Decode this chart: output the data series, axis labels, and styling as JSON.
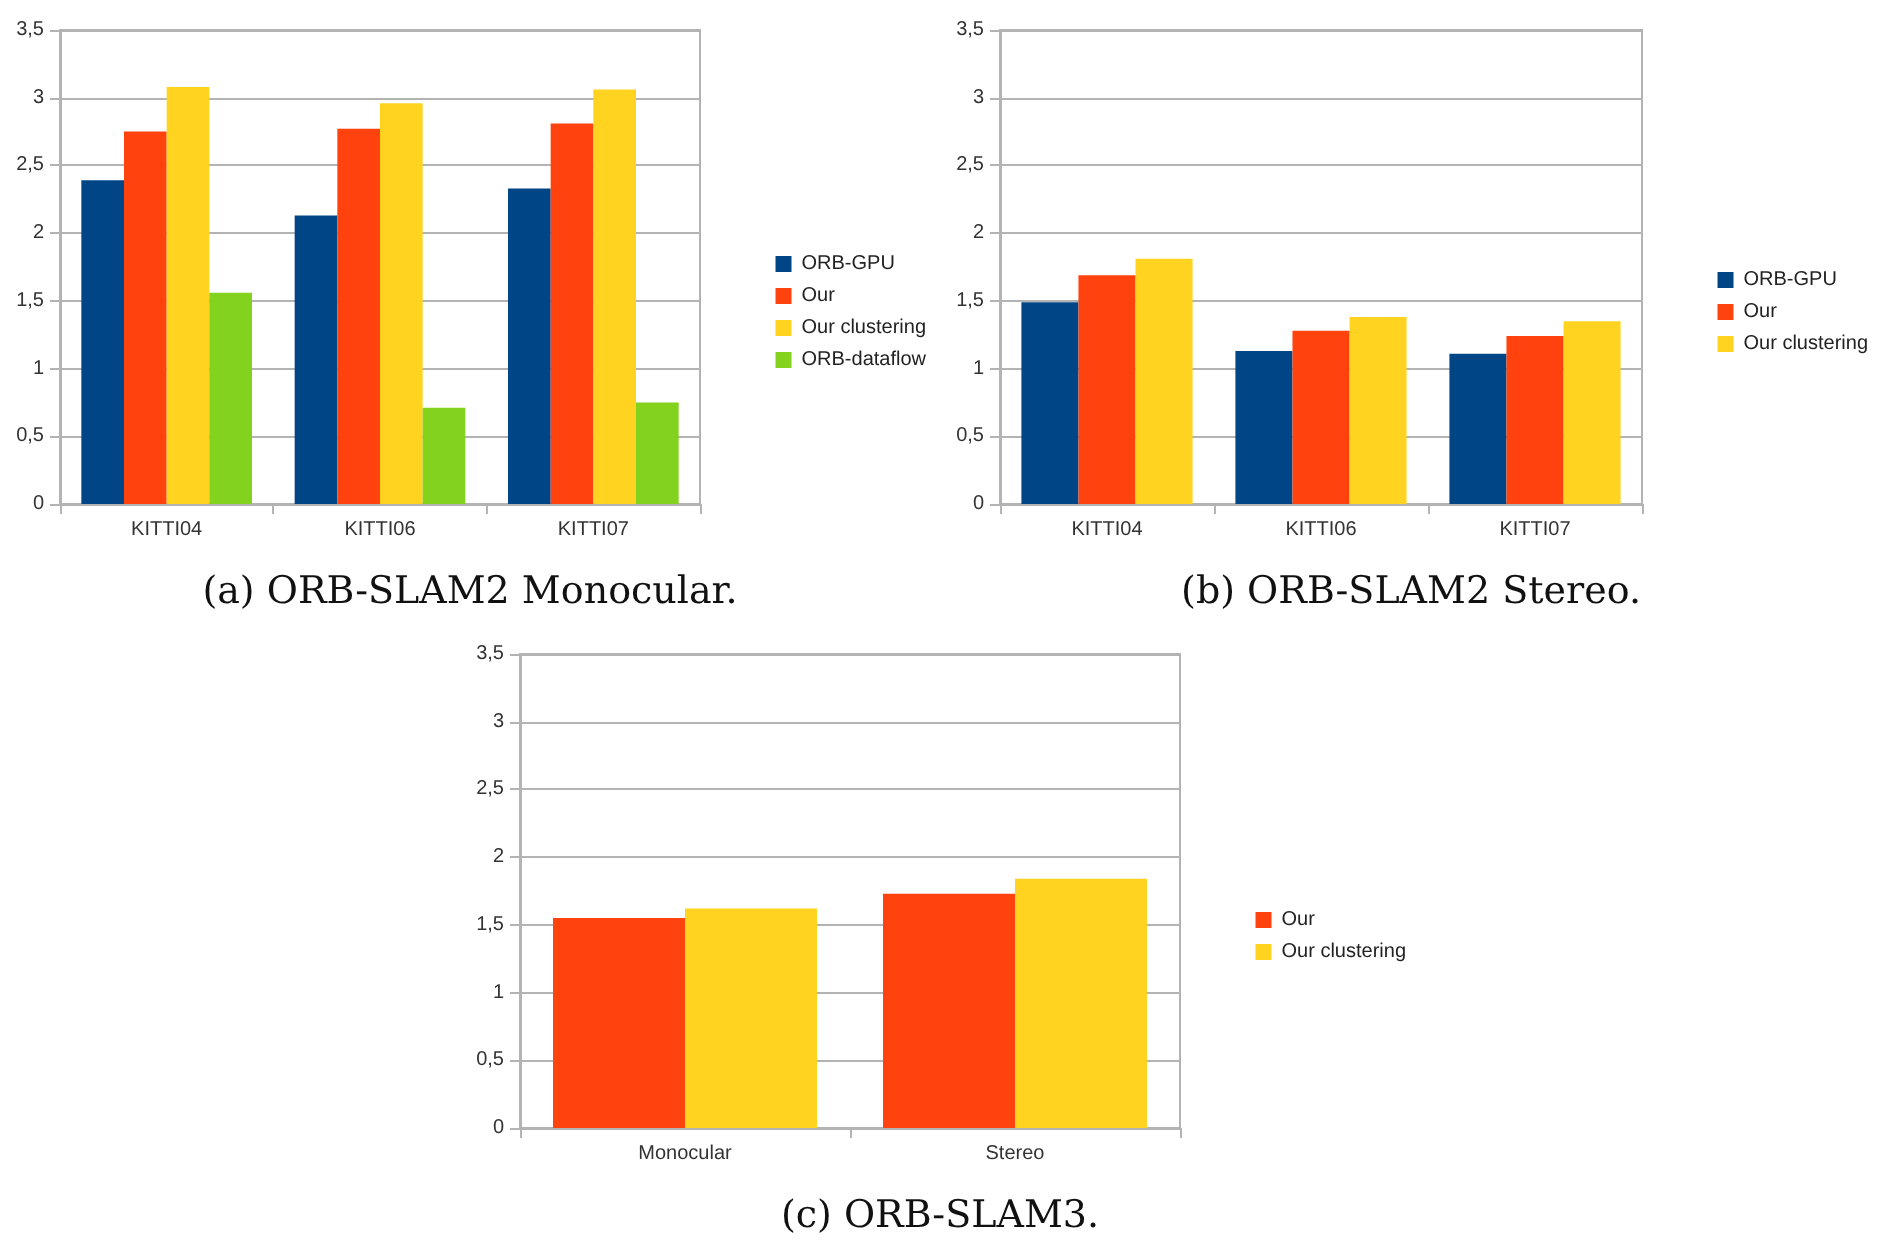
{
  "chart_data": [
    {
      "type": "bar",
      "title": "(a) ORB-SLAM2 Monocular.",
      "categories": [
        "KITTI04",
        "KITTI06",
        "KITTI07"
      ],
      "series": [
        {
          "name": "ORB-GPU",
          "color": "#004586",
          "values": [
            2.39,
            2.13,
            2.33
          ]
        },
        {
          "name": "Our",
          "color": "#ff420e",
          "values": [
            2.75,
            2.77,
            2.81
          ]
        },
        {
          "name": "Our clustering",
          "color": "#ffd320",
          "values": [
            3.08,
            2.96,
            3.06
          ]
        },
        {
          "name": "ORB-dataflow",
          "color": "#83d21e",
          "values": [
            1.56,
            0.71,
            0.75
          ]
        }
      ],
      "ylim": [
        0,
        3.5
      ],
      "yticks": [
        0,
        {
          "value": 0.5,
          "label": "0,5"
        },
        1,
        {
          "value": 1.5,
          "label": "1,5"
        },
        2,
        {
          "value": 2.5,
          "label": "2,5"
        },
        3,
        {
          "value": 3.5,
          "label": "3,5"
        }
      ],
      "grid": "y",
      "legend": "right"
    },
    {
      "type": "bar",
      "title": "(b) ORB-SLAM2 Stereo.",
      "categories": [
        "KITTI04",
        "KITTI06",
        "KITTI07"
      ],
      "series": [
        {
          "name": "ORB-GPU",
          "color": "#004586",
          "values": [
            1.49,
            1.13,
            1.11
          ]
        },
        {
          "name": "Our",
          "color": "#ff420e",
          "values": [
            1.69,
            1.28,
            1.24
          ]
        },
        {
          "name": "Our clustering",
          "color": "#ffd320",
          "values": [
            1.81,
            1.38,
            1.35
          ]
        }
      ],
      "ylim": [
        0,
        3.5
      ],
      "yticks": [
        0,
        {
          "value": 0.5,
          "label": "0,5"
        },
        1,
        {
          "value": 1.5,
          "label": "1,5"
        },
        2,
        {
          "value": 2.5,
          "label": "2,5"
        },
        3,
        {
          "value": 3.5,
          "label": "3,5"
        }
      ],
      "grid": "y",
      "legend": "right"
    },
    {
      "type": "bar",
      "title": "(c) ORB-SLAM3.",
      "categories": [
        "Monocular",
        "Stereo"
      ],
      "series": [
        {
          "name": "Our",
          "color": "#ff420e",
          "values": [
            1.55,
            1.73
          ]
        },
        {
          "name": "Our clustering",
          "color": "#ffd320",
          "values": [
            1.62,
            1.84
          ]
        }
      ],
      "ylim": [
        0,
        3.5
      ],
      "yticks": [
        0,
        {
          "value": 0.5,
          "label": "0,5"
        },
        1,
        {
          "value": 1.5,
          "label": "1,5"
        },
        2,
        {
          "value": 2.5,
          "label": "2,5"
        },
        3,
        {
          "value": 3.5,
          "label": "3,5"
        }
      ],
      "grid": "y",
      "legend": "right"
    }
  ]
}
